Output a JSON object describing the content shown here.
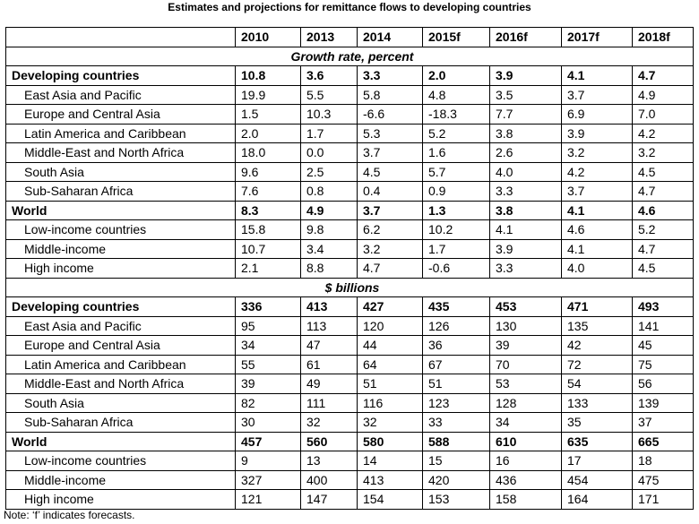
{
  "title": "Estimates and projections for remittance flows to developing countries",
  "note": "Note: ‘f’ indicates forecasts.",
  "chart_data": {
    "type": "table",
    "columns": [
      "",
      "2010",
      "2013",
      "2014",
      "2015f",
      "2016f",
      "2017f",
      "2018f"
    ],
    "sections": [
      {
        "label": "Growth rate, percent",
        "rows": [
          {
            "label": "Developing countries",
            "bold": true,
            "values": [
              "10.8",
              "3.6",
              "3.3",
              "2.0",
              "3.9",
              "4.1",
              "4.7"
            ]
          },
          {
            "label": "East Asia and Pacific",
            "bold": false,
            "values": [
              "19.9",
              "5.5",
              "5.8",
              "4.8",
              "3.5",
              "3.7",
              "4.9"
            ]
          },
          {
            "label": "Europe and Central Asia",
            "bold": false,
            "values": [
              "1.5",
              "10.3",
              "-6.6",
              "-18.3",
              "7.7",
              "6.9",
              "7.0"
            ]
          },
          {
            "label": "Latin America and Caribbean",
            "bold": false,
            "values": [
              "2.0",
              "1.7",
              "5.3",
              "5.2",
              "3.8",
              "3.9",
              "4.2"
            ]
          },
          {
            "label": "Middle-East and North Africa",
            "bold": false,
            "values": [
              "18.0",
              "0.0",
              "3.7",
              "1.6",
              "2.6",
              "3.2",
              "3.2"
            ]
          },
          {
            "label": "South Asia",
            "bold": false,
            "values": [
              "9.6",
              "2.5",
              "4.5",
              "5.7",
              "4.0",
              "4.2",
              "4.5"
            ]
          },
          {
            "label": "Sub-Saharan Africa",
            "bold": false,
            "values": [
              "7.6",
              "0.8",
              "0.4",
              "0.9",
              "3.3",
              "3.7",
              "4.7"
            ]
          },
          {
            "label": "World",
            "bold": true,
            "values": [
              "8.3",
              "4.9",
              "3.7",
              "1.3",
              "3.8",
              "4.1",
              "4.6"
            ]
          },
          {
            "label": "Low-income countries",
            "bold": false,
            "values": [
              "15.8",
              "9.8",
              "6.2",
              "10.2",
              "4.1",
              "4.6",
              "5.2"
            ]
          },
          {
            "label": "Middle-income",
            "bold": false,
            "values": [
              "10.7",
              "3.4",
              "3.2",
              "1.7",
              "3.9",
              "4.1",
              "4.7"
            ]
          },
          {
            "label": "High income",
            "bold": false,
            "values": [
              "2.1",
              "8.8",
              "4.7",
              "-0.6",
              "3.3",
              "4.0",
              "4.5"
            ]
          }
        ]
      },
      {
        "label": "$ billions",
        "rows": [
          {
            "label": "Developing countries",
            "bold": true,
            "values": [
              "336",
              "413",
              "427",
              "435",
              "453",
              "471",
              "493"
            ]
          },
          {
            "label": "East Asia and Pacific",
            "bold": false,
            "values": [
              "95",
              "113",
              "120",
              "126",
              "130",
              "135",
              "141"
            ]
          },
          {
            "label": "Europe and Central Asia",
            "bold": false,
            "values": [
              "34",
              "47",
              "44",
              "36",
              "39",
              "42",
              "45"
            ]
          },
          {
            "label": "Latin America and Caribbean",
            "bold": false,
            "values": [
              "55",
              "61",
              "64",
              "67",
              "70",
              "72",
              "75"
            ]
          },
          {
            "label": "Middle-East and North Africa",
            "bold": false,
            "values": [
              "39",
              "49",
              "51",
              "51",
              "53",
              "54",
              "56"
            ]
          },
          {
            "label": "South Asia",
            "bold": false,
            "values": [
              "82",
              "111",
              "116",
              "123",
              "128",
              "133",
              "139"
            ]
          },
          {
            "label": "Sub-Saharan Africa",
            "bold": false,
            "values": [
              "30",
              "32",
              "32",
              "33",
              "34",
              "35",
              "37"
            ]
          },
          {
            "label": "World",
            "bold": true,
            "values": [
              "457",
              "560",
              "580",
              "588",
              "610",
              "635",
              "665"
            ]
          },
          {
            "label": "Low-income countries",
            "bold": false,
            "values": [
              "9",
              "13",
              "14",
              "15",
              "16",
              "17",
              "18"
            ]
          },
          {
            "label": "Middle-income",
            "bold": false,
            "values": [
              "327",
              "400",
              "413",
              "420",
              "436",
              "454",
              "475"
            ]
          },
          {
            "label": "High income",
            "bold": false,
            "values": [
              "121",
              "147",
              "154",
              "153",
              "158",
              "164",
              "171"
            ]
          }
        ]
      }
    ]
  }
}
